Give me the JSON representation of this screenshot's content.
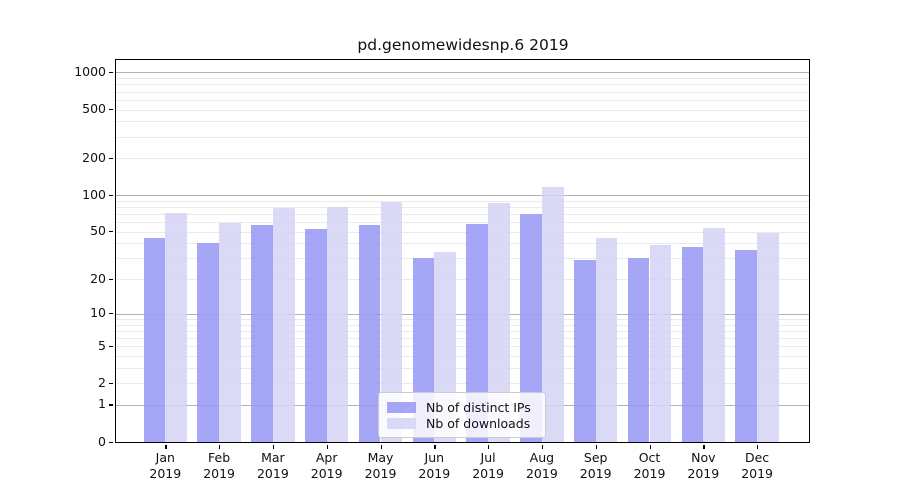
{
  "chart_data": {
    "type": "bar",
    "title": "pd.genomewidesnp.6 2019",
    "categories": [
      "Jan",
      "Feb",
      "Mar",
      "Apr",
      "May",
      "Jun",
      "Jul",
      "Aug",
      "Sep",
      "Oct",
      "Nov",
      "Dec"
    ],
    "category_year_label": "2019",
    "series": [
      {
        "name": "Nb of distinct IPs",
        "color": "rgba(150,150,245,0.85)",
        "color_hex": "#a6a6f2",
        "values": [
          44,
          40,
          57,
          53,
          57,
          30,
          58,
          70,
          29,
          30,
          37,
          35
        ]
      },
      {
        "name": "Nb of downloads",
        "color": "rgba(212,212,246,0.85)",
        "color_hex": "#d9d9f9",
        "values": [
          72,
          59,
          78,
          80,
          88,
          34,
          87,
          117,
          44,
          39,
          54,
          49
        ]
      }
    ],
    "y_axis": {
      "scale": "log10(1+x)",
      "tick_labels": [
        "0",
        "1",
        "2",
        "5",
        "10",
        "20",
        "50",
        "100",
        "200",
        "500",
        "1000"
      ],
      "tick_values": [
        0,
        1,
        2,
        5,
        10,
        20,
        50,
        100,
        200,
        500,
        1000
      ],
      "max": 1000,
      "major_gridlines": [
        1,
        10,
        100,
        1000
      ],
      "minor_gridline_multiples": [
        2,
        3,
        4,
        5,
        6,
        7,
        8,
        9
      ],
      "minor_gridline_decades": [
        1,
        10,
        100
      ]
    },
    "grid": {
      "horizontal": true,
      "vertical": false
    },
    "legend_position": "inside-bottom-center",
    "colors": {
      "major_grid": "#b2b2b2",
      "minor_grid": "#ebebeb",
      "spine": "#000000",
      "text": "#111111"
    }
  }
}
